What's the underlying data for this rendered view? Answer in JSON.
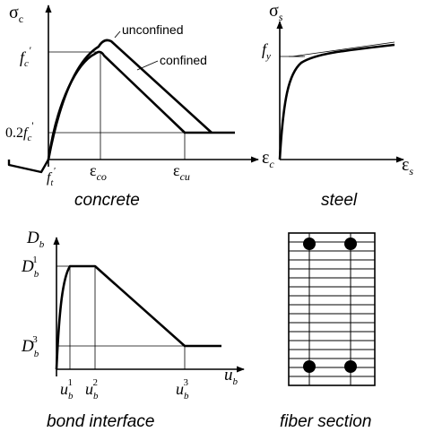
{
  "concrete": {
    "caption": "concrete",
    "y_axis": {
      "sym": "σ",
      "sub": "c"
    },
    "x_axis": {
      "sym": "ε",
      "sub": "c"
    },
    "fc_label": {
      "sym": "f",
      "sub": "c",
      "sup": "'"
    },
    "fc02_label": {
      "prefix": "0.2",
      "sym": "f",
      "sub": "c",
      "sup": "'"
    },
    "ft_label": {
      "sym": "f",
      "sub": "t",
      "sup": "'"
    },
    "eco_label": {
      "sym": "ε",
      "sub": "co"
    },
    "ecu_label": {
      "sym": "ε",
      "sub": "cu"
    },
    "curve_unconfined": "unconfined",
    "curve_confined": "confined"
  },
  "steel": {
    "caption": "steel",
    "y_axis": {
      "sym": "σ",
      "sub": "s"
    },
    "x_axis": {
      "sym": "ε",
      "sub": "s"
    },
    "fy_label": {
      "sym": "f",
      "sub": "y"
    }
  },
  "bond": {
    "caption": "bond interface",
    "y_axis": {
      "sym": "D",
      "sub": "b"
    },
    "x_axis": {
      "sym": "u",
      "sub": "b"
    },
    "d1_label": {
      "sym": "D",
      "sub": "b",
      "sup": "1"
    },
    "d3_label": {
      "sym": "D",
      "sub": "b",
      "sup": "3"
    },
    "u1_label": {
      "sym": "u",
      "sub": "b",
      "sup": "1"
    },
    "u2_label": {
      "sym": "u",
      "sub": "b",
      "sup": "2"
    },
    "u3_label": {
      "sym": "u",
      "sub": "b",
      "sup": "3"
    }
  },
  "fiber": {
    "caption": "fiber section"
  }
}
